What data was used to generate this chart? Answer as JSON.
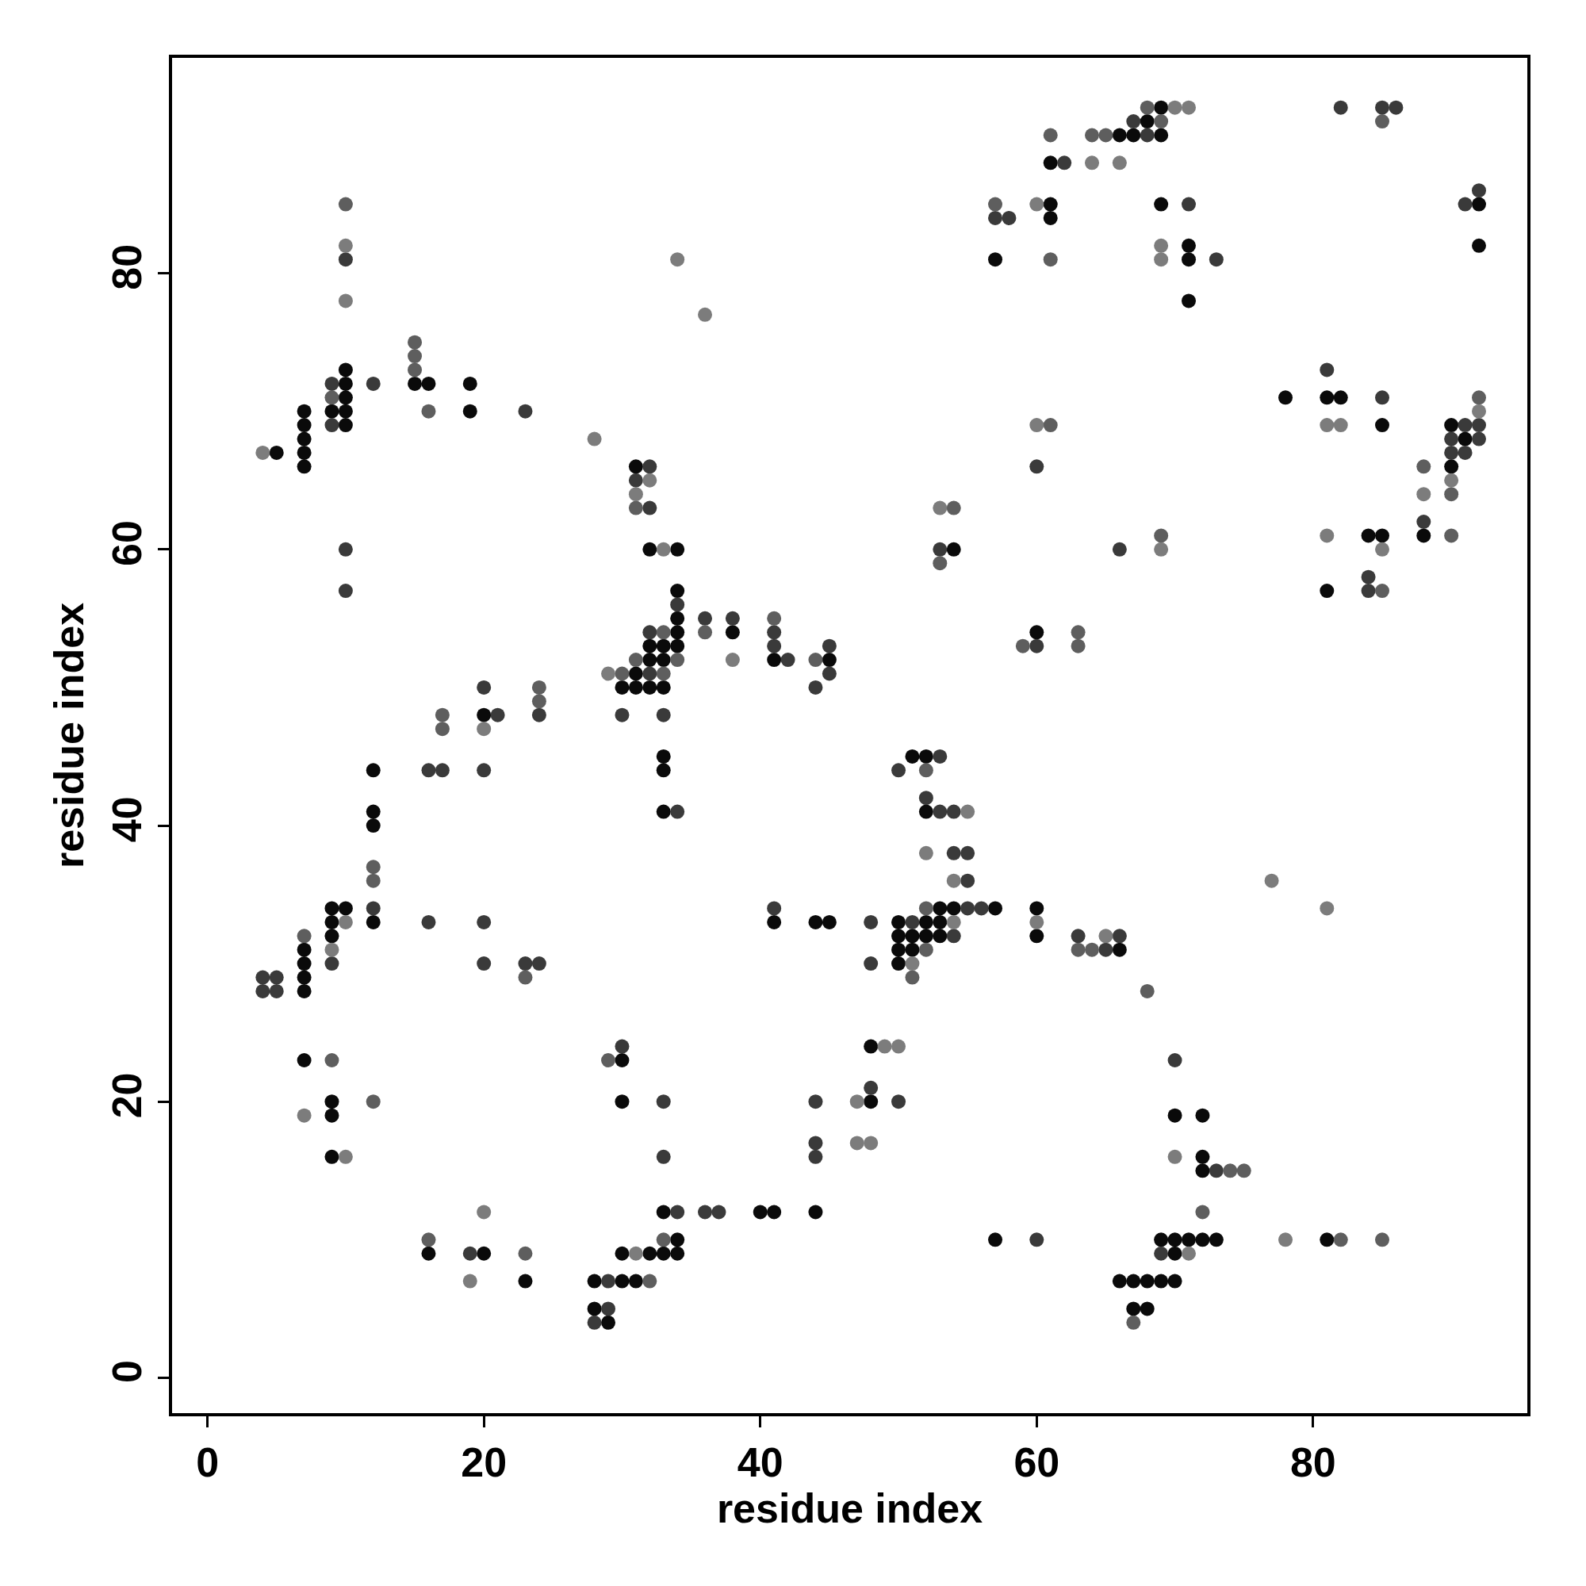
{
  "chart_data": {
    "type": "scatter",
    "xlabel": "residue index",
    "ylabel": "residue index",
    "xlim": [
      -2.56,
      95.5
    ],
    "ylim": [
      -2.56,
      95.6
    ],
    "xticks": [
      0,
      20,
      40,
      60,
      80
    ],
    "yticks": [
      0,
      20,
      40,
      60,
      80
    ],
    "marker": "circle",
    "series": [
      {
        "color": "#0a0a0a",
        "x": [
          5,
          7,
          7,
          7,
          7,
          7,
          7,
          7,
          7,
          7,
          7,
          9,
          9,
          9,
          9,
          9,
          9,
          9,
          10,
          10,
          10,
          10,
          10,
          10,
          12,
          12,
          12,
          12,
          15,
          16,
          16,
          19,
          19,
          20,
          20,
          23,
          28,
          28,
          29,
          30,
          30,
          30,
          30,
          30,
          31,
          31,
          31,
          31,
          32,
          32,
          32,
          32,
          32,
          33,
          33,
          33,
          33,
          33,
          33,
          33,
          33,
          34,
          34,
          34,
          34,
          34,
          34,
          34,
          38,
          40,
          41,
          41,
          41,
          44,
          44,
          45,
          45,
          48,
          48,
          50,
          50,
          50,
          50,
          51,
          51,
          51,
          52,
          52,
          52,
          52,
          53,
          53,
          53,
          54,
          54,
          57,
          57,
          57,
          60,
          60,
          60,
          61,
          61,
          61,
          66,
          66,
          66,
          67,
          67,
          67,
          68,
          68,
          68,
          69,
          69,
          69,
          69,
          69,
          70,
          70,
          70,
          70,
          71,
          71,
          71,
          71,
          72,
          72,
          72,
          72,
          73,
          78,
          81,
          81,
          81,
          82,
          84,
          85,
          85,
          88,
          90,
          90,
          91,
          92,
          92
        ],
        "values": [
          67,
          70,
          69,
          68,
          67,
          66,
          31,
          30,
          29,
          28,
          23,
          70,
          34,
          33,
          32,
          20,
          19,
          16,
          73,
          72,
          71,
          70,
          69,
          34,
          44,
          41,
          40,
          33,
          72,
          72,
          9,
          72,
          70,
          48,
          9,
          7,
          7,
          5,
          4,
          50,
          23,
          20,
          9,
          7,
          66,
          51,
          50,
          7,
          60,
          53,
          52,
          50,
          9,
          53,
          52,
          50,
          45,
          44,
          41,
          12,
          9,
          60,
          57,
          55,
          54,
          53,
          10,
          9,
          54,
          12,
          52,
          33,
          12,
          33,
          12,
          52,
          33,
          24,
          20,
          33,
          32,
          31,
          30,
          45,
          32,
          31,
          45,
          41,
          33,
          32,
          34,
          33,
          32,
          60,
          34,
          81,
          34,
          10,
          54,
          34,
          32,
          88,
          85,
          84,
          90,
          31,
          7,
          90,
          7,
          5,
          91,
          7,
          5,
          92,
          90,
          85,
          10,
          7,
          19,
          10,
          9,
          7,
          82,
          81,
          78,
          10,
          19,
          16,
          15,
          10,
          10,
          71,
          71,
          57,
          10,
          71,
          61,
          69,
          61,
          61,
          69,
          66,
          68,
          85,
          82
        ]
      },
      {
        "color": "#3a3a3a",
        "x": [
          4,
          4,
          5,
          5,
          9,
          9,
          9,
          10,
          10,
          10,
          12,
          12,
          16,
          16,
          17,
          19,
          20,
          20,
          20,
          20,
          21,
          23,
          23,
          24,
          24,
          28,
          29,
          29,
          30,
          30,
          31,
          32,
          32,
          32,
          32,
          33,
          33,
          33,
          34,
          34,
          34,
          36,
          36,
          37,
          38,
          41,
          41,
          41,
          42,
          44,
          44,
          44,
          44,
          45,
          45,
          48,
          48,
          48,
          50,
          50,
          51,
          52,
          53,
          53,
          53,
          54,
          54,
          54,
          55,
          55,
          55,
          56,
          57,
          58,
          60,
          60,
          60,
          62,
          63,
          65,
          66,
          66,
          67,
          68,
          69,
          70,
          71,
          73,
          73,
          81,
          82,
          84,
          84,
          85,
          85,
          86,
          88,
          90,
          90,
          91,
          91,
          91,
          92,
          92,
          92
        ],
        "values": [
          29,
          28,
          29,
          28,
          72,
          69,
          30,
          81,
          60,
          57,
          72,
          34,
          44,
          33,
          44,
          9,
          50,
          44,
          33,
          30,
          48,
          70,
          30,
          48,
          30,
          4,
          7,
          5,
          48,
          24,
          65,
          66,
          63,
          54,
          51,
          48,
          20,
          16,
          56,
          41,
          12,
          55,
          12,
          12,
          55,
          54,
          53,
          34,
          52,
          50,
          20,
          17,
          16,
          53,
          51,
          33,
          30,
          21,
          44,
          20,
          33,
          42,
          45,
          41,
          60,
          41,
          38,
          32,
          38,
          36,
          34,
          34,
          84,
          84,
          66,
          53,
          10,
          88,
          32,
          31,
          60,
          32,
          91,
          90,
          9,
          23,
          85,
          81,
          15,
          73,
          92,
          58,
          57,
          92,
          71,
          92,
          62,
          68,
          67,
          85,
          69,
          67,
          86,
          69,
          68
        ]
      },
      {
        "color": "#5e5e5e",
        "x": [
          7,
          9,
          9,
          10,
          12,
          12,
          12,
          15,
          15,
          15,
          16,
          16,
          17,
          17,
          23,
          23,
          24,
          24,
          29,
          30,
          31,
          31,
          32,
          33,
          33,
          33,
          34,
          36,
          41,
          44,
          51,
          52,
          52,
          52,
          53,
          54,
          57,
          59,
          61,
          61,
          61,
          63,
          63,
          63,
          64,
          64,
          65,
          67,
          68,
          68,
          69,
          69,
          72,
          74,
          75,
          82,
          85,
          85,
          85,
          88,
          90,
          90,
          92
        ],
        "values": [
          32,
          71,
          23,
          85,
          37,
          36,
          20,
          75,
          74,
          73,
          70,
          10,
          48,
          47,
          29,
          9,
          50,
          49,
          23,
          51,
          63,
          52,
          7,
          54,
          51,
          10,
          52,
          54,
          55,
          52,
          29,
          44,
          34,
          31,
          59,
          63,
          85,
          53,
          90,
          81,
          69,
          54,
          53,
          31,
          90,
          31,
          90,
          4,
          92,
          28,
          91,
          61,
          12,
          15,
          15,
          10,
          91,
          57,
          10,
          66,
          64,
          61,
          71
        ]
      },
      {
        "color": "#7c7c7c",
        "x": [
          4,
          7,
          9,
          10,
          10,
          10,
          10,
          19,
          20,
          20,
          28,
          29,
          31,
          31,
          32,
          33,
          34,
          36,
          38,
          47,
          47,
          48,
          49,
          50,
          51,
          52,
          53,
          54,
          54,
          55,
          60,
          60,
          60,
          64,
          65,
          66,
          69,
          69,
          69,
          70,
          70,
          71,
          71,
          77,
          78,
          81,
          81,
          81,
          82,
          85,
          88,
          90,
          92
        ],
        "values": [
          67,
          19,
          31,
          82,
          78,
          33,
          16,
          7,
          47,
          12,
          68,
          51,
          64,
          9,
          65,
          60,
          81,
          77,
          52,
          20,
          17,
          17,
          24,
          24,
          30,
          38,
          63,
          36,
          33,
          41,
          85,
          69,
          33,
          88,
          32,
          88,
          82,
          81,
          60,
          92,
          16,
          92,
          9,
          36,
          10,
          69,
          61,
          34,
          69,
          60,
          64,
          65,
          70
        ]
      }
    ]
  }
}
